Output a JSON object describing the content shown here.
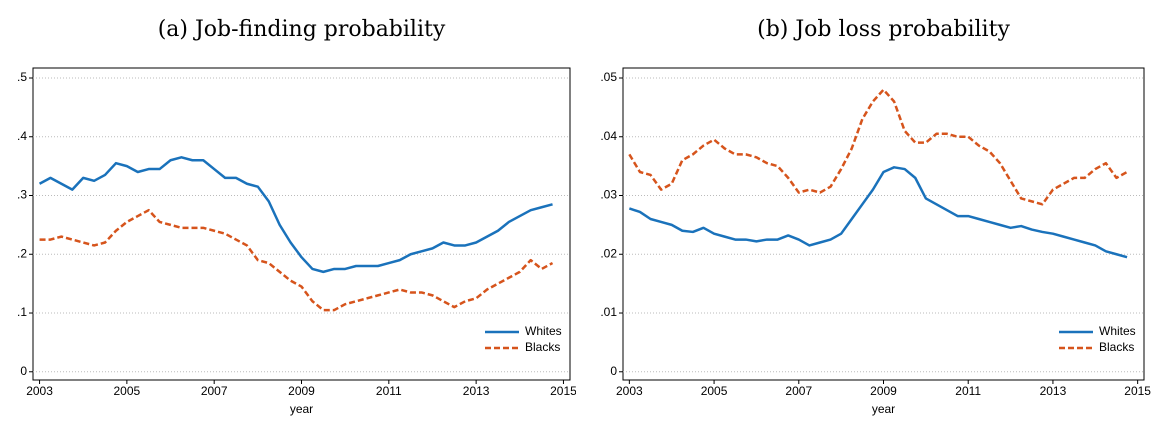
{
  "chart_data": [
    {
      "type": "line",
      "title": "(a) Job-finding probability",
      "xlabel": "year",
      "x": [
        2003,
        2003.25,
        2003.5,
        2003.75,
        2004,
        2004.25,
        2004.5,
        2004.75,
        2005,
        2005.25,
        2005.5,
        2005.75,
        2006,
        2006.25,
        2006.5,
        2006.75,
        2007,
        2007.25,
        2007.5,
        2007.75,
        2008,
        2008.25,
        2008.5,
        2008.75,
        2009,
        2009.25,
        2009.5,
        2009.75,
        2010,
        2010.25,
        2010.5,
        2010.75,
        2011,
        2011.25,
        2011.5,
        2011.75,
        2012,
        2012.25,
        2012.5,
        2012.75,
        2013,
        2013.25,
        2013.5,
        2013.75,
        2014,
        2014.25,
        2014.5,
        2014.75
      ],
      "series": [
        {
          "name": "Whites",
          "color": "#1a72bb",
          "dashed": false,
          "values": [
            0.32,
            0.33,
            0.32,
            0.31,
            0.33,
            0.325,
            0.335,
            0.355,
            0.35,
            0.34,
            0.345,
            0.345,
            0.36,
            0.365,
            0.36,
            0.36,
            0.345,
            0.33,
            0.33,
            0.32,
            0.315,
            0.29,
            0.25,
            0.22,
            0.195,
            0.175,
            0.17,
            0.175,
            0.175,
            0.18,
            0.18,
            0.18,
            0.185,
            0.19,
            0.2,
            0.205,
            0.21,
            0.22,
            0.215,
            0.215,
            0.22,
            0.23,
            0.24,
            0.255,
            0.265,
            0.275,
            0.28,
            0.285
          ]
        },
        {
          "name": "Blacks",
          "color": "#d6541c",
          "dashed": true,
          "values": [
            0.225,
            0.225,
            0.23,
            0.225,
            0.22,
            0.215,
            0.22,
            0.24,
            0.255,
            0.265,
            0.275,
            0.255,
            0.25,
            0.245,
            0.245,
            0.245,
            0.24,
            0.235,
            0.225,
            0.215,
            0.19,
            0.185,
            0.17,
            0.155,
            0.145,
            0.12,
            0.105,
            0.105,
            0.115,
            0.12,
            0.125,
            0.13,
            0.135,
            0.14,
            0.135,
            0.135,
            0.13,
            0.12,
            0.11,
            0.12,
            0.125,
            0.14,
            0.15,
            0.16,
            0.17,
            0.19,
            0.175,
            0.185
          ]
        }
      ],
      "xlim": [
        2002.85,
        2015.15
      ],
      "xticks": [
        2003,
        2005,
        2007,
        2009,
        2011,
        2013,
        2015
      ],
      "ylim": [
        -0.014,
        0.517
      ],
      "yticks": [
        0,
        {
          "value": 0.1,
          "label": ".1"
        },
        {
          "value": 0.2,
          "label": ".2"
        },
        {
          "value": 0.3,
          "label": ".3"
        },
        {
          "value": 0.4,
          "label": ".4"
        },
        {
          "value": 0.5,
          "label": ".5"
        }
      ],
      "grid": true,
      "legend": "lower right"
    },
    {
      "type": "line",
      "title": "(b) Job loss probability",
      "xlabel": "year",
      "x": [
        2003,
        2003.25,
        2003.5,
        2003.75,
        2004,
        2004.25,
        2004.5,
        2004.75,
        2005,
        2005.25,
        2005.5,
        2005.75,
        2006,
        2006.25,
        2006.5,
        2006.75,
        2007,
        2007.25,
        2007.5,
        2007.75,
        2008,
        2008.25,
        2008.5,
        2008.75,
        2009,
        2009.25,
        2009.5,
        2009.75,
        2010,
        2010.25,
        2010.5,
        2010.75,
        2011,
        2011.25,
        2011.5,
        2011.75,
        2012,
        2012.25,
        2012.5,
        2012.75,
        2013,
        2013.25,
        2013.5,
        2013.75,
        2014,
        2014.25,
        2014.5,
        2014.75
      ],
      "series": [
        {
          "name": "Whites",
          "color": "#1a72bb",
          "dashed": false,
          "values": [
            0.0278,
            0.0272,
            0.026,
            0.0255,
            0.025,
            0.024,
            0.0238,
            0.0245,
            0.0235,
            0.023,
            0.0225,
            0.0225,
            0.0222,
            0.0225,
            0.0225,
            0.0232,
            0.0225,
            0.0215,
            0.022,
            0.0225,
            0.0235,
            0.026,
            0.0285,
            0.031,
            0.034,
            0.0348,
            0.0345,
            0.033,
            0.0295,
            0.0285,
            0.0275,
            0.0265,
            0.0265,
            0.026,
            0.0255,
            0.025,
            0.0245,
            0.0248,
            0.0242,
            0.0238,
            0.0235,
            0.023,
            0.0225,
            0.022,
            0.0215,
            0.0205,
            0.02,
            0.0195
          ]
        },
        {
          "name": "Blacks",
          "color": "#d6541c",
          "dashed": true,
          "values": [
            0.037,
            0.034,
            0.0335,
            0.031,
            0.032,
            0.036,
            0.037,
            0.0385,
            0.0395,
            0.038,
            0.037,
            0.037,
            0.0365,
            0.0355,
            0.035,
            0.033,
            0.0305,
            0.031,
            0.0305,
            0.0315,
            0.0345,
            0.038,
            0.043,
            0.046,
            0.048,
            0.046,
            0.041,
            0.039,
            0.039,
            0.0405,
            0.0405,
            0.04,
            0.04,
            0.0385,
            0.0375,
            0.0355,
            0.0325,
            0.0295,
            0.029,
            0.0285,
            0.031,
            0.032,
            0.033,
            0.033,
            0.0345,
            0.0355,
            0.033,
            0.034
          ]
        }
      ],
      "xlim": [
        2002.85,
        2015.15
      ],
      "xticks": [
        2003,
        2005,
        2007,
        2009,
        2011,
        2013,
        2015
      ],
      "ylim": [
        -0.0014,
        0.0517
      ],
      "yticks": [
        0,
        {
          "value": 0.01,
          "label": ".01"
        },
        {
          "value": 0.02,
          "label": ".02"
        },
        {
          "value": 0.03,
          "label": ".03"
        },
        {
          "value": 0.04,
          "label": ".04"
        },
        {
          "value": 0.05,
          "label": ".05"
        }
      ],
      "grid": true,
      "legend": "lower right"
    }
  ]
}
